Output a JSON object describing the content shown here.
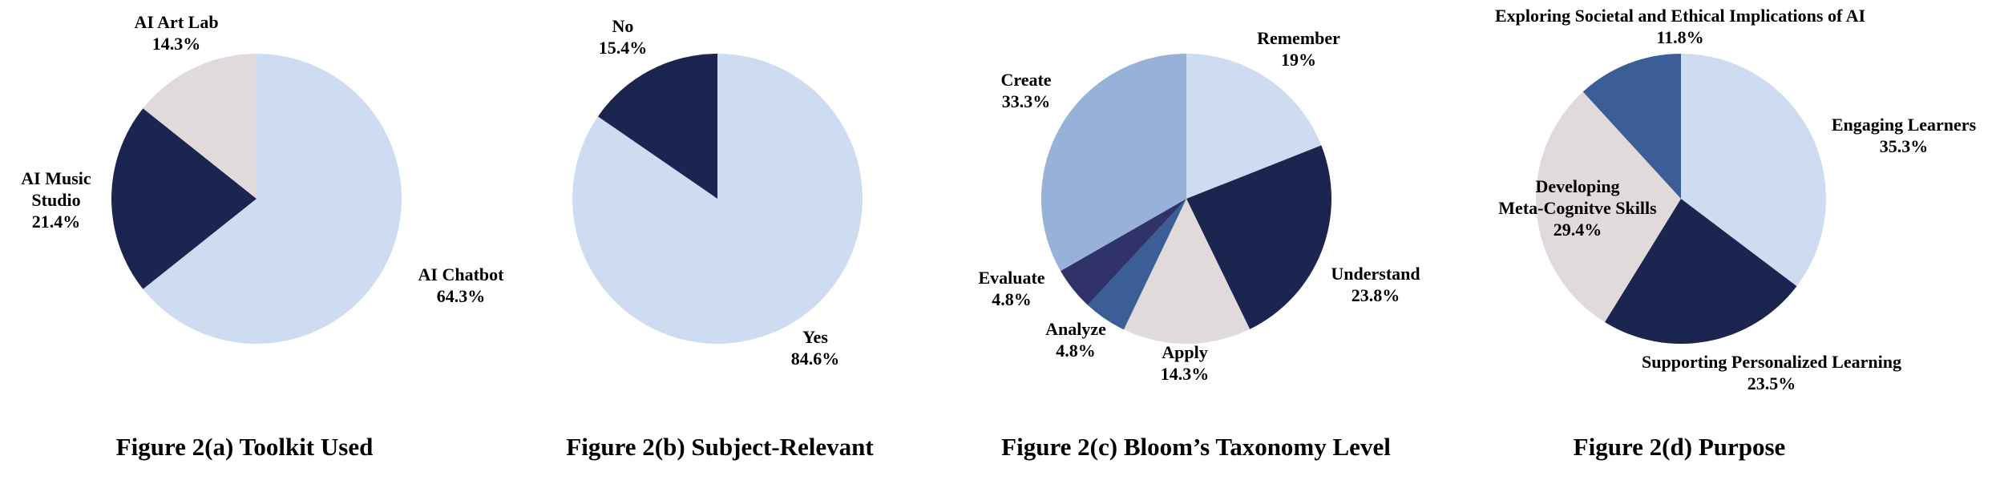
{
  "colors": {
    "light_blue": "#cddcf1",
    "navy": "#1c2550",
    "light_gray": "#e0dadb",
    "medium_blue": "#97b1d8",
    "steel_blue": "#3a5e95",
    "indigo": "#2f336a"
  },
  "chart_data": [
    {
      "type": "pie",
      "title": "Figure 2(a) Toolkit Used",
      "slices": [
        {
          "label": "AI Chatbot",
          "value": 64.3,
          "value_label": "64.3%",
          "color": "#cddcf1"
        },
        {
          "label": "AI Music Studio",
          "value": 21.4,
          "value_label": "21.4%",
          "color": "#1c2550"
        },
        {
          "label": "AI Art Lab",
          "value": 14.3,
          "value_label": "14.3%",
          "color": "#e0dadb"
        }
      ]
    },
    {
      "type": "pie",
      "title": "Figure 2(b) Subject-Relevant",
      "slices": [
        {
          "label": "Yes",
          "value": 84.6,
          "value_label": "84.6%",
          "color": "#cddcf1"
        },
        {
          "label": "No",
          "value": 15.4,
          "value_label": "15.4%",
          "color": "#1c2550"
        }
      ]
    },
    {
      "type": "pie",
      "title": "Figure 2(c) Bloom’s Taxonomy Level",
      "slices": [
        {
          "label": "Remember",
          "value": 19.0,
          "value_label": "19%",
          "color": "#cddcf1"
        },
        {
          "label": "Understand",
          "value": 23.8,
          "value_label": "23.8%",
          "color": "#1c2550"
        },
        {
          "label": "Apply",
          "value": 14.3,
          "value_label": "14.3%",
          "color": "#e0dadb"
        },
        {
          "label": "Analyze",
          "value": 4.8,
          "value_label": "4.8%",
          "color": "#3a5e95"
        },
        {
          "label": "Evaluate",
          "value": 4.8,
          "value_label": "4.8%",
          "color": "#2f336a"
        },
        {
          "label": "Create",
          "value": 33.3,
          "value_label": "33.3%",
          "color": "#97b1d8"
        }
      ]
    },
    {
      "type": "pie",
      "title": "Figure 2(d) Purpose",
      "slices": [
        {
          "label": "Engaging Learners",
          "value": 35.3,
          "value_label": "35.3%",
          "color": "#cddcf1"
        },
        {
          "label": "Supporting Personalized Learning",
          "value": 23.5,
          "value_label": "23.5%",
          "color": "#1c2550"
        },
        {
          "label": "Developing Meta-Cognitve Skills",
          "value": 29.4,
          "value_label": "29.4%",
          "color": "#e0dadb"
        },
        {
          "label": "Exploring Societal and Ethical Implications of AI",
          "value": 11.8,
          "value_label": "11.8%",
          "color": "#3a5e95"
        }
      ]
    }
  ]
}
